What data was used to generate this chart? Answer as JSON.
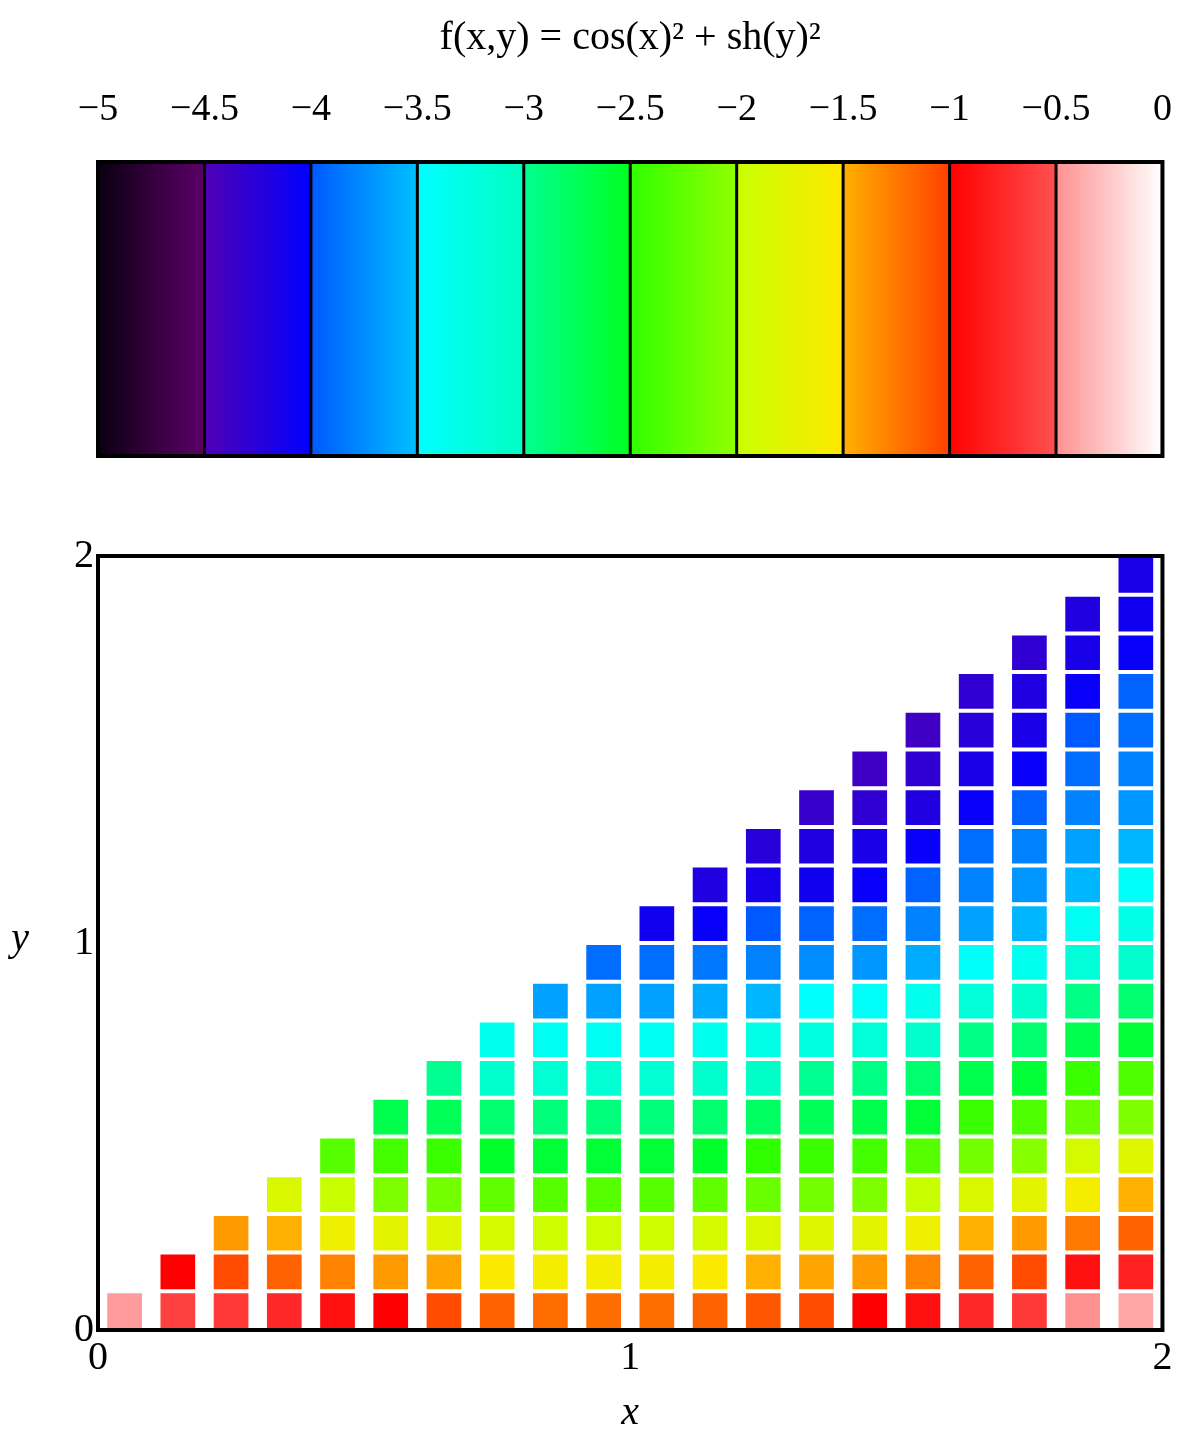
{
  "chart_data": {
    "type": "scatter",
    "title": "f(x,y) = cos(x)² + sh(y)²",
    "xlabel": "x",
    "ylabel": "y",
    "marker": "square",
    "xlim": [
      0,
      2
    ],
    "ylim": [
      0,
      2
    ],
    "xticks": [
      0,
      1,
      2
    ],
    "yticks": [
      0,
      1,
      2
    ],
    "clim": [
      -5,
      0
    ],
    "cticks": [
      -5,
      -4.5,
      -4,
      -3.5,
      -3,
      -2.5,
      -2,
      -1.5,
      -1,
      -0.5,
      0
    ],
    "x": [
      0.05,
      0.15,
      0.25,
      0.35,
      0.45,
      0.55,
      0.65,
      0.75,
      0.85,
      0.95,
      1.05,
      1.15,
      1.25,
      1.35,
      1.45,
      1.55,
      1.65,
      1.75,
      1.85,
      1.95,
      0.15,
      0.25,
      0.35,
      0.45,
      0.55,
      0.65,
      0.75,
      0.85,
      0.95,
      1.05,
      1.15,
      1.25,
      1.35,
      1.45,
      1.55,
      1.65,
      1.75,
      1.85,
      1.95,
      0.25,
      0.35,
      0.45,
      0.55,
      0.65,
      0.75,
      0.85,
      0.95,
      1.05,
      1.15,
      1.25,
      1.35,
      1.45,
      1.55,
      1.65,
      1.75,
      1.85,
      1.95,
      0.35,
      0.45,
      0.55,
      0.65,
      0.75,
      0.85,
      0.95,
      1.05,
      1.15,
      1.25,
      1.35,
      1.45,
      1.55,
      1.65,
      1.75,
      1.85,
      1.95,
      0.45,
      0.55,
      0.65,
      0.75,
      0.85,
      0.95,
      1.05,
      1.15,
      1.25,
      1.35,
      1.45,
      1.55,
      1.65,
      1.75,
      1.85,
      1.95,
      0.55,
      0.65,
      0.75,
      0.85,
      0.95,
      1.05,
      1.15,
      1.25,
      1.35,
      1.45,
      1.55,
      1.65,
      1.75,
      1.85,
      1.95,
      0.65,
      0.75,
      0.85,
      0.95,
      1.05,
      1.15,
      1.25,
      1.35,
      1.45,
      1.55,
      1.65,
      1.75,
      1.85,
      1.95,
      0.75,
      0.85,
      0.95,
      1.05,
      1.15,
      1.25,
      1.35,
      1.45,
      1.55,
      1.65,
      1.75,
      1.85,
      1.95,
      0.85,
      0.95,
      1.05,
      1.15,
      1.25,
      1.35,
      1.45,
      1.55,
      1.65,
      1.75,
      1.85,
      1.95,
      0.95,
      1.05,
      1.15,
      1.25,
      1.35,
      1.45,
      1.55,
      1.65,
      1.75,
      1.85,
      1.95,
      1.05,
      1.15,
      1.25,
      1.35,
      1.45,
      1.55,
      1.65,
      1.75,
      1.85,
      1.95,
      1.15,
      1.25,
      1.35,
      1.45,
      1.55,
      1.65,
      1.75,
      1.85,
      1.95,
      1.25,
      1.35,
      1.45,
      1.55,
      1.65,
      1.75,
      1.85,
      1.95,
      1.35,
      1.45,
      1.55,
      1.65,
      1.75,
      1.85,
      1.95,
      1.45,
      1.55,
      1.65,
      1.75,
      1.85,
      1.95,
      1.55,
      1.65,
      1.75,
      1.85,
      1.95,
      1.65,
      1.75,
      1.85,
      1.95,
      1.75,
      1.85,
      1.95,
      1.85,
      1.95,
      1.95
    ],
    "values": [
      0.05,
      0.05,
      0.05,
      0.05,
      0.05,
      0.05,
      0.05,
      0.05,
      0.05,
      0.05,
      0.05,
      0.05,
      0.05,
      0.05,
      0.05,
      0.05,
      0.05,
      0.05,
      0.05,
      0.05,
      0.15,
      0.15,
      0.15,
      0.15,
      0.15,
      0.15,
      0.15,
      0.15,
      0.15,
      0.15,
      0.15,
      0.15,
      0.15,
      0.15,
      0.15,
      0.15,
      0.15,
      0.15,
      0.15,
      0.25,
      0.25,
      0.25,
      0.25,
      0.25,
      0.25,
      0.25,
      0.25,
      0.25,
      0.25,
      0.25,
      0.25,
      0.25,
      0.25,
      0.25,
      0.25,
      0.25,
      0.25,
      0.35,
      0.35,
      0.35,
      0.35,
      0.35,
      0.35,
      0.35,
      0.35,
      0.35,
      0.35,
      0.35,
      0.35,
      0.35,
      0.35,
      0.35,
      0.35,
      0.35,
      0.45,
      0.45,
      0.45,
      0.45,
      0.45,
      0.45,
      0.45,
      0.45,
      0.45,
      0.45,
      0.45,
      0.45,
      0.45,
      0.45,
      0.45,
      0.45,
      0.55,
      0.55,
      0.55,
      0.55,
      0.55,
      0.55,
      0.55,
      0.55,
      0.55,
      0.55,
      0.55,
      0.55,
      0.55,
      0.55,
      0.55,
      0.65,
      0.65,
      0.65,
      0.65,
      0.65,
      0.65,
      0.65,
      0.65,
      0.65,
      0.65,
      0.65,
      0.65,
      0.65,
      0.65,
      0.75,
      0.75,
      0.75,
      0.75,
      0.75,
      0.75,
      0.75,
      0.75,
      0.75,
      0.75,
      0.75,
      0.75,
      0.75,
      0.85,
      0.85,
      0.85,
      0.85,
      0.85,
      0.85,
      0.85,
      0.85,
      0.85,
      0.85,
      0.85,
      0.85,
      0.95,
      0.95,
      0.95,
      0.95,
      0.95,
      0.95,
      0.95,
      0.95,
      0.95,
      0.95,
      0.95,
      1.05,
      1.05,
      1.05,
      1.05,
      1.05,
      1.05,
      1.05,
      1.05,
      1.05,
      1.05,
      1.15,
      1.15,
      1.15,
      1.15,
      1.15,
      1.15,
      1.15,
      1.15,
      1.15,
      1.25,
      1.25,
      1.25,
      1.25,
      1.25,
      1.25,
      1.25,
      1.25,
      1.35,
      1.35,
      1.35,
      1.35,
      1.35,
      1.35,
      1.35,
      1.45,
      1.45,
      1.45,
      1.45,
      1.45,
      1.45,
      1.55,
      1.55,
      1.55,
      1.55,
      1.55,
      1.65,
      1.65,
      1.65,
      1.65,
      1.75,
      1.75,
      1.75,
      1.85,
      1.85,
      1.95
    ],
    "cvalues": [
      -0.45,
      -0.6,
      -0.65,
      -0.75,
      -0.9,
      -1,
      -1.05,
      -1.15,
      -1.2,
      -1.2,
      -1.2,
      -1.15,
      -1.1,
      -1.05,
      -1,
      -0.9,
      -0.75,
      -0.65,
      -0.5,
      -0.4,
      -1,
      -1.05,
      -1.15,
      -1.3,
      -1.4,
      -1.45,
      -1.55,
      -1.6,
      -1.6,
      -1.6,
      -1.55,
      -1.5,
      -1.45,
      -1.4,
      -1.3,
      -1.15,
      -1.05,
      -0.9,
      -0.8,
      -1.4,
      -1.5,
      -1.65,
      -1.75,
      -1.8,
      -1.9,
      -1.95,
      -1.95,
      -1.95,
      -1.9,
      -1.85,
      -1.8,
      -1.75,
      -1.65,
      -1.5,
      -1.4,
      -1.25,
      -1.15,
      -1.85,
      -2,
      -2.1,
      -2.15,
      -2.25,
      -2.3,
      -2.3,
      -2.3,
      -2.25,
      -2.2,
      -2.15,
      -2.1,
      -2,
      -1.85,
      -1.75,
      -1.6,
      -1.5,
      -2.3,
      -2.4,
      -2.45,
      -2.55,
      -2.6,
      -2.6,
      -2.6,
      -2.55,
      -2.5,
      -2.45,
      -2.4,
      -2.3,
      -2.15,
      -2.05,
      -1.9,
      -1.8,
      -2.7,
      -2.75,
      -2.85,
      -2.9,
      -2.9,
      -2.9,
      -2.85,
      -2.8,
      -2.75,
      -2.7,
      -2.6,
      -2.45,
      -2.35,
      -2.2,
      -2.1,
      -3,
      -3.1,
      -3.15,
      -3.15,
      -3.15,
      -3.1,
      -3.05,
      -3,
      -2.95,
      -2.85,
      -2.7,
      -2.6,
      -2.45,
      -2.35,
      -3.35,
      -3.4,
      -3.4,
      -3.4,
      -3.35,
      -3.3,
      -3.25,
      -3.2,
      -3.1,
      -2.95,
      -2.85,
      -2.7,
      -2.6,
      -3.65,
      -3.65,
      -3.65,
      -3.6,
      -3.55,
      -3.5,
      -3.45,
      -3.35,
      -3.2,
      -3.1,
      -2.95,
      -2.85,
      -3.9,
      -3.9,
      -3.85,
      -3.8,
      -3.75,
      -3.7,
      -3.6,
      -3.45,
      -3.35,
      -3.2,
      -3.1,
      -4.1,
      -4.05,
      -4,
      -3.95,
      -3.9,
      -3.8,
      -3.65,
      -3.55,
      -3.4,
      -3.3,
      -4.2,
      -4.15,
      -4.1,
      -4.05,
      -3.95,
      -3.8,
      -3.7,
      -3.55,
      -3.45,
      -4.25,
      -4.2,
      -4.15,
      -4.05,
      -3.9,
      -3.8,
      -3.65,
      -3.55,
      -4.35,
      -4.3,
      -4.2,
      -4.05,
      -3.95,
      -3.8,
      -3.7,
      -4.4,
      -4.3,
      -4.15,
      -4.05,
      -3.9,
      -3.8,
      -4.4,
      -4.25,
      -4.15,
      -4,
      -3.9,
      -4.3,
      -4.2,
      -4.05,
      -3.95,
      -4.3,
      -4.15,
      -4.05,
      -4.2,
      -4.1,
      -4.15
    ]
  }
}
